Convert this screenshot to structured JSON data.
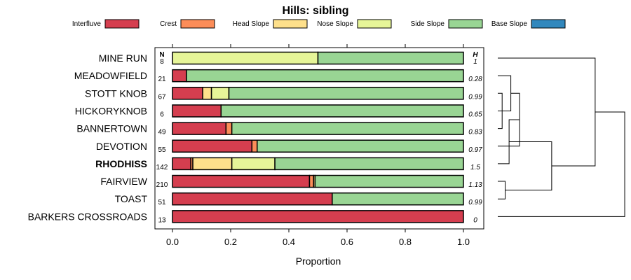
{
  "chart_data": {
    "type": "bar",
    "orientation": "horizontal",
    "stacked": true,
    "title": "Hills: sibling",
    "xlabel": "Proportion",
    "ylabel": "",
    "xlim": [
      0,
      1
    ],
    "xticks": [
      "0.0",
      "0.2",
      "0.4",
      "0.6",
      "0.8",
      "1.0"
    ],
    "n_header": "N",
    "h_header": "H",
    "legend": {
      "position": "top",
      "entries": [
        {
          "name": "Interfluve",
          "color": "#d53e4f"
        },
        {
          "name": "Crest",
          "color": "#fc8d59"
        },
        {
          "name": "Head Slope",
          "color": "#fee08b"
        },
        {
          "name": "Nose Slope",
          "color": "#e6f598"
        },
        {
          "name": "Side Slope",
          "color": "#99d594"
        },
        {
          "name": "Base Slope",
          "color": "#3288bd"
        }
      ]
    },
    "categories": [
      "MINE RUN",
      "MEADOWFIELD",
      "STOTT KNOB",
      "HICKORYKNOB",
      "BANNERTOWN",
      "DEVOTION",
      "RHODHISS",
      "FAIRVIEW",
      "TOAST",
      "BARKERS CROSSROADS"
    ],
    "highlight": "RHODHISS",
    "n": [
      "8",
      "21",
      "67",
      "6",
      "49",
      "55",
      "142",
      "210",
      "51",
      "13"
    ],
    "h": [
      "1",
      "0.28",
      "0.99",
      "0.65",
      "0.83",
      "0.97",
      "1.5",
      "1.13",
      "0.99",
      "0"
    ],
    "series": [
      {
        "name": "Interfluve",
        "values": [
          0,
          0.048,
          0.104,
          0.167,
          0.184,
          0.273,
          0.063,
          0.471,
          0.549,
          1.0
        ]
      },
      {
        "name": "Crest",
        "values": [
          0,
          0,
          0,
          0,
          0.02,
          0.018,
          0.007,
          0.014,
          0,
          0
        ]
      },
      {
        "name": "Head Slope",
        "values": [
          0,
          0,
          0.03,
          0,
          0,
          0,
          0.134,
          0.005,
          0,
          0
        ]
      },
      {
        "name": "Nose Slope",
        "values": [
          0.5,
          0,
          0.06,
          0,
          0,
          0,
          0.148,
          0,
          0,
          0
        ]
      },
      {
        "name": "Side Slope",
        "values": [
          0.5,
          0.952,
          0.806,
          0.833,
          0.796,
          0.709,
          0.648,
          0.51,
          0.451,
          0
        ]
      },
      {
        "name": "Base Slope",
        "values": [
          0,
          0,
          0,
          0,
          0,
          0,
          0,
          0,
          0,
          0
        ]
      }
    ],
    "dendrogram": {
      "description": "hierarchical clustering of the hills",
      "merges": [
        {
          "a": "STOTT KNOB",
          "b": "BANNERTOWN",
          "height": 0.1
        },
        {
          "a": "HICKORYKNOB",
          "b": "STOTT KNOB+BANNERTOWN",
          "height": 0.17
        },
        {
          "a": "MEADOWFIELD",
          "b": "HICKORYKNOB+STOTT KNOB+BANNERTOWN",
          "height": 0.3
        },
        {
          "a": "FAIRVIEW",
          "b": "TOAST",
          "height": 0.17
        },
        {
          "a": "MEADOWFIELD..BANNERTOWN",
          "b": "DEVOTION",
          "height": 0.5
        },
        {
          "a": "MEADOWFIELD..DEVOTION",
          "b": "RHODHISS",
          "height": 0.26
        },
        {
          "a": "MEADOWFIELD..RHODHISS",
          "b": "FAIRVIEW+TOAST",
          "height": 1.24
        },
        {
          "a": "MINE RUN",
          "b": "MEADOWFIELD..TOAST",
          "height": 2.24
        },
        {
          "a": "MINE RUN..TOAST",
          "b": "BARKERS CROSSROADS",
          "height": 2.92
        }
      ]
    }
  }
}
